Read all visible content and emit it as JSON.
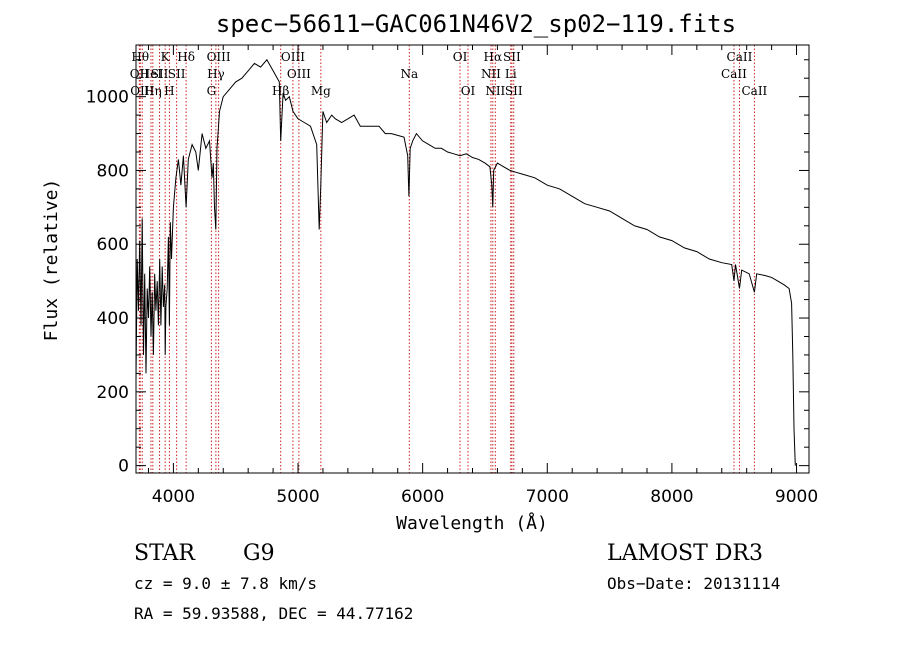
{
  "chart_data": {
    "type": "line",
    "title": "spec−56611−GAC061N46V2_sp02−119.fits",
    "xlabel": "Wavelength (Å)",
    "ylabel": "Flux (relative)",
    "xlim": [
      3700,
      9100
    ],
    "ylim": [
      -20,
      1140
    ],
    "xticks": [
      4000,
      5000,
      6000,
      7000,
      8000,
      9000
    ],
    "yticks": [
      0,
      200,
      400,
      600,
      800,
      1000
    ],
    "series": [
      {
        "name": "spectrum",
        "x": [
          3700,
          3710,
          3720,
          3730,
          3740,
          3750,
          3760,
          3770,
          3780,
          3790,
          3800,
          3810,
          3820,
          3830,
          3840,
          3850,
          3860,
          3870,
          3880,
          3890,
          3900,
          3910,
          3920,
          3930,
          3934,
          3940,
          3950,
          3960,
          3968,
          3975,
          3985,
          4000,
          4020,
          4040,
          4060,
          4080,
          4102,
          4120,
          4150,
          4180,
          4200,
          4230,
          4260,
          4290,
          4310,
          4320,
          4330,
          4340,
          4350,
          4370,
          4400,
          4450,
          4500,
          4550,
          4600,
          4650,
          4700,
          4750,
          4800,
          4850,
          4861,
          4880,
          4900,
          4930,
          4960,
          5000,
          5050,
          5100,
          5150,
          5170,
          5183,
          5200,
          5230,
          5270,
          5300,
          5350,
          5400,
          5450,
          5500,
          5550,
          5600,
          5650,
          5700,
          5750,
          5800,
          5850,
          5880,
          5890,
          5900,
          5920,
          5950,
          6000,
          6050,
          6100,
          6150,
          6200,
          6250,
          6300,
          6350,
          6400,
          6450,
          6500,
          6540,
          6555,
          6563,
          6570,
          6600,
          6650,
          6700,
          6750,
          6800,
          6900,
          7000,
          7100,
          7200,
          7300,
          7400,
          7500,
          7600,
          7700,
          7800,
          7900,
          8000,
          8100,
          8200,
          8300,
          8400,
          8480,
          8498,
          8510,
          8542,
          8560,
          8620,
          8662,
          8680,
          8750,
          8800,
          8850,
          8900,
          8940,
          8960,
          8970,
          8980,
          8990
        ],
        "values": [
          230,
          560,
          420,
          610,
          380,
          670,
          300,
          520,
          250,
          480,
          400,
          540,
          350,
          470,
          300,
          520,
          420,
          500,
          380,
          560,
          380,
          540,
          430,
          490,
          300,
          430,
          480,
          620,
          380,
          660,
          560,
          700,
          780,
          830,
          760,
          840,
          700,
          830,
          870,
          850,
          800,
          900,
          860,
          880,
          780,
          820,
          700,
          640,
          860,
          960,
          1000,
          1020,
          1040,
          1050,
          1070,
          1090,
          1080,
          1100,
          1070,
          1040,
          880,
          1010,
          990,
          1000,
          960,
          940,
          930,
          920,
          870,
          640,
          760,
          960,
          930,
          950,
          940,
          930,
          940,
          950,
          920,
          920,
          920,
          920,
          900,
          900,
          895,
          890,
          840,
          730,
          860,
          880,
          900,
          880,
          870,
          860,
          860,
          850,
          845,
          840,
          845,
          835,
          830,
          820,
          810,
          760,
          700,
          800,
          820,
          810,
          800,
          795,
          790,
          780,
          760,
          750,
          730,
          710,
          700,
          690,
          670,
          650,
          640,
          620,
          610,
          590,
          580,
          560,
          550,
          545,
          500,
          545,
          480,
          530,
          520,
          470,
          520,
          515,
          510,
          500,
          490,
          480,
          440,
          300,
          100,
          0
        ]
      }
    ],
    "lines": [
      {
        "wl": 3734,
        "label": "Hθ",
        "row": 1
      },
      {
        "wl": 3727,
        "label": "OII",
        "row": 2
      },
      {
        "wl": 3750,
        "label": "OIII",
        "row": 3
      },
      {
        "wl": 3820,
        "label": "HeI",
        "row": 2
      },
      {
        "wl": 3835,
        "label": "Hη",
        "row": 3
      },
      {
        "wl": 3889,
        "label": "SII",
        "row": 2
      },
      {
        "wl": 3934,
        "label": "K",
        "row": 1
      },
      {
        "wl": 3968,
        "label": "H",
        "row": 3
      },
      {
        "wl": 4026,
        "label": "SII",
        "row": 2
      },
      {
        "wl": 4102,
        "label": "Hδ",
        "row": 1
      },
      {
        "wl": 4305,
        "label": "G",
        "row": 3
      },
      {
        "wl": 4341,
        "label": "Hγ",
        "row": 2
      },
      {
        "wl": 4363,
        "label": "OIII",
        "row": 1
      },
      {
        "wl": 4861,
        "label": "Hβ",
        "row": 3
      },
      {
        "wl": 4959,
        "label": "OIII",
        "row": 1
      },
      {
        "wl": 5007,
        "label": "OIII",
        "row": 2
      },
      {
        "wl": 5183,
        "label": "Mg",
        "row": 3
      },
      {
        "wl": 5893,
        "label": "Na",
        "row": 2
      },
      {
        "wl": 6300,
        "label": "OI",
        "row": 1
      },
      {
        "wl": 6364,
        "label": "OI",
        "row": 3
      },
      {
        "wl": 6548,
        "label": "NII",
        "row": 2
      },
      {
        "wl": 6563,
        "label": "Hα",
        "row": 1
      },
      {
        "wl": 6583,
        "label": "NII",
        "row": 3
      },
      {
        "wl": 6707,
        "label": "Li",
        "row": 2
      },
      {
        "wl": 6716,
        "label": "SII",
        "row": 1
      },
      {
        "wl": 6731,
        "label": "SII",
        "row": 3
      },
      {
        "wl": 8498,
        "label": "CaII",
        "row": 2
      },
      {
        "wl": 8542,
        "label": "CaII",
        "row": 1
      },
      {
        "wl": 8662,
        "label": "CaII",
        "row": 3
      }
    ]
  },
  "info": {
    "class": "STAR",
    "subclass": "G9",
    "survey": "LAMOST DR3",
    "cz": "cz = 9.0 ± 7.8 km/s",
    "obsdate": "Obs−Date: 20131114",
    "radec": "RA =  59.93588, DEC =  44.77162"
  }
}
